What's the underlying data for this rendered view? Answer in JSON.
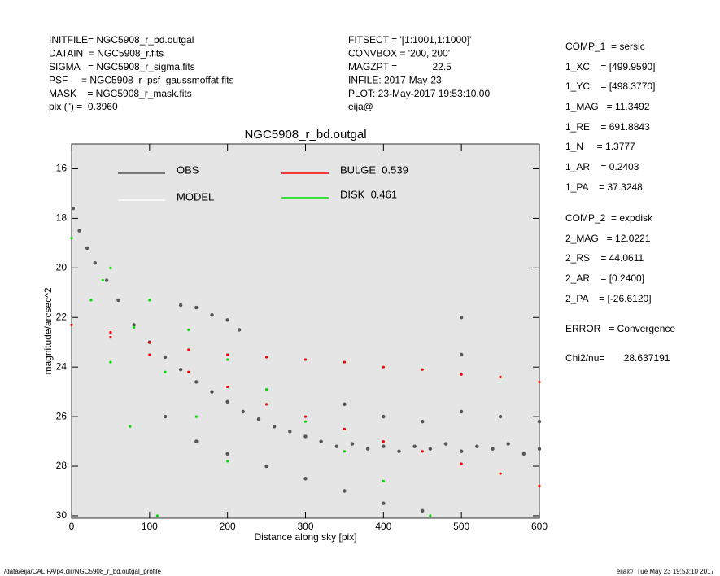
{
  "header": {
    "left": [
      "INITFILE= NGC5908_r_bd.outgal",
      "DATAIN  = NGC5908_r.fits",
      "SIGMA   = NGC5908_r_sigma.fits",
      "PSF     = NGC5908_r_psf_gaussmoffat.fits",
      "MASK    = NGC5908_r_mask.fits",
      "pix (\") =  0.3960"
    ],
    "middle": [
      "FITSECT = '[1:1001,1:1000]'",
      "CONVBOX = '200, 200'",
      "MAGZPT =             22.5",
      "INFILE: 2017-May-23",
      "PLOT: 23-May-2017 19:53:10.00",
      "eija@"
    ]
  },
  "params": [
    "COMP_1  = sersic",
    "1_XC    = [499.9590]",
    "1_YC    = [498.3770]",
    "1_MAG   = 11.3492",
    "1_RE    = 691.8843",
    "1_N     = 1.3777",
    "1_AR    = 0.2403",
    "1_PA    = 37.3248",
    "COMP_2  = expdisk",
    "2_MAG   = 12.0221",
    "2_RS    = 44.0611",
    "2_AR    = [0.2400]",
    "2_PA    = [-26.6120]",
    "ERROR   = Convergence",
    "Chi2/nu=       28.637191"
  ],
  "footer": {
    "left": "/data/eija/CALIFA/p4.dir/NGC5908_r_bd.outgal_profile",
    "right": "eija@  Tue May 23 19:53:10 2017"
  },
  "chart_data": {
    "type": "scatter",
    "title": "NGC5908_r_bd.outgal",
    "x_label": "Distance along sky [pix]",
    "y_label": "magnitude/arcsec^2",
    "xlim": [
      0,
      600
    ],
    "ylim": [
      15,
      30.1
    ],
    "y_inverted": true,
    "xticks": [
      0,
      100,
      200,
      300,
      400,
      500,
      600
    ],
    "yticks": [
      16,
      18,
      20,
      22,
      24,
      26,
      28,
      30
    ],
    "series": [
      {
        "name": "OBS",
        "color": "#555555",
        "x": [
          2,
          10,
          20,
          30,
          45,
          60,
          80,
          100,
          120,
          140,
          160,
          180,
          200,
          220,
          240,
          260,
          280,
          300,
          320,
          340,
          360,
          380,
          400,
          420,
          440,
          460,
          480,
          500,
          520,
          540,
          560,
          580,
          600,
          140,
          160,
          180,
          200,
          215,
          120,
          160,
          200,
          250,
          300,
          350,
          400,
          450,
          350,
          400,
          450,
          500,
          550,
          600,
          500,
          500
        ],
        "y": [
          17.6,
          18.5,
          19.2,
          19.8,
          20.5,
          21.3,
          22.3,
          23,
          23.6,
          24.1,
          24.6,
          25,
          25.4,
          25.8,
          26.1,
          26.4,
          26.6,
          26.8,
          27,
          27.2,
          27.1,
          27.3,
          27.2,
          27.4,
          27.2,
          27.3,
          27.1,
          27.4,
          27.2,
          27.3,
          27.1,
          27.5,
          27.3,
          21.5,
          21.6,
          21.9,
          22.1,
          22.5,
          26,
          27,
          27.5,
          28,
          28.5,
          29,
          29.5,
          29.8,
          25.5,
          26,
          26.2,
          25.8,
          26,
          26.2,
          22,
          23.5
        ]
      },
      {
        "name": "MODEL",
        "color": "#ffffff",
        "x": [],
        "y": []
      },
      {
        "name": "BULGE  0.539",
        "color": "#ff0000",
        "x": [
          0,
          50,
          100,
          150,
          200,
          250,
          300,
          350,
          400,
          450,
          500,
          550,
          600,
          50,
          100,
          150,
          200,
          250,
          300,
          350,
          400,
          450,
          500,
          550,
          600
        ],
        "y": [
          22.3,
          22.6,
          23,
          23.3,
          23.5,
          23.6,
          23.7,
          23.8,
          24,
          24.1,
          24.3,
          24.4,
          24.6,
          22.8,
          23.5,
          24.2,
          24.8,
          25.5,
          26,
          26.5,
          27,
          27.4,
          27.9,
          28.3,
          28.8
        ]
      },
      {
        "name": "DISK  0.461",
        "color": "#00dd00",
        "x": [
          0,
          50,
          100,
          150,
          200,
          250,
          300,
          350,
          400,
          460,
          25,
          50,
          75,
          110,
          40,
          80,
          120,
          160,
          200
        ],
        "y": [
          18.8,
          20,
          21.3,
          22.5,
          23.7,
          24.9,
          26.2,
          27.4,
          28.6,
          30,
          21.3,
          23.8,
          26.4,
          30,
          20.5,
          22.4,
          24.2,
          26,
          27.8
        ]
      }
    ]
  }
}
